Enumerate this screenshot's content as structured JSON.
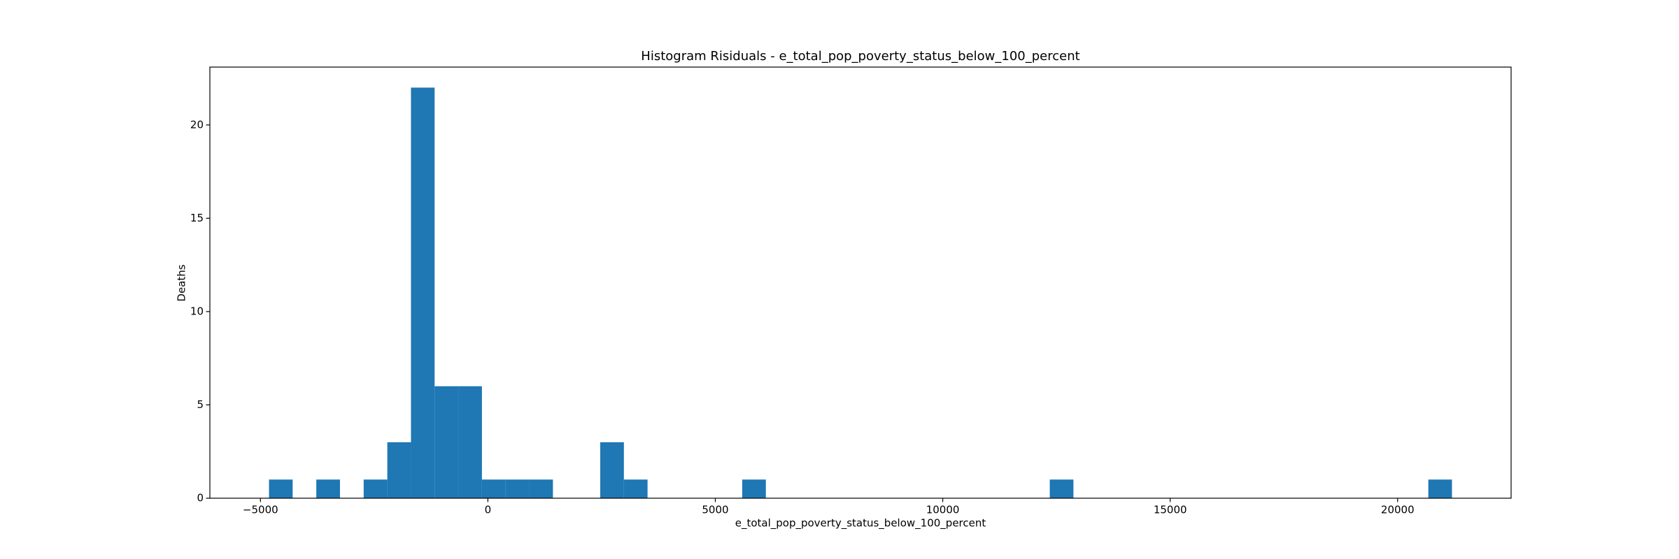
{
  "chart_data": {
    "type": "histogram",
    "title": "Histogram Risiduals - e_total_pop_poverty_status_below_100_percent",
    "xlabel": "e_total_pop_poverty_status_below_100_percent",
    "ylabel": "Deaths",
    "color": "#1f77b4",
    "bins": [
      -4812,
      -4292,
      -3772,
      -3252,
      -2731,
      -2211,
      -1691,
      -1171,
      -651,
      -131,
      389,
      910,
      1430,
      1950,
      2470,
      2990,
      3510,
      4030,
      4551,
      5071,
      5591,
      6111,
      6631,
      7151,
      7671,
      8192,
      8712,
      9232,
      9752,
      10272,
      10792,
      11312,
      11832,
      12353,
      12873,
      13393,
      13913,
      14433,
      14953,
      15473,
      15994,
      16514,
      17034,
      17554,
      18074,
      18594,
      19114,
      19635,
      20155,
      20675,
      21195
    ],
    "counts": [
      1,
      0,
      1,
      0,
      1,
      3,
      22,
      6,
      6,
      1,
      1,
      1,
      0,
      0,
      3,
      1,
      0,
      0,
      0,
      0,
      1,
      0,
      0,
      0,
      0,
      0,
      0,
      0,
      0,
      0,
      0,
      0,
      0,
      1,
      0,
      0,
      0,
      0,
      0,
      0,
      0,
      0,
      0,
      0,
      0,
      0,
      0,
      0,
      0,
      1
    ],
    "xlim": [
      -6112,
      22495
    ],
    "xticks": [
      {
        "value": -5000,
        "label": "−5000"
      },
      0,
      5000,
      10000,
      15000,
      20000
    ],
    "ylim": [
      0,
      23.1
    ],
    "yticks": [
      0,
      5,
      10,
      15,
      20
    ]
  }
}
